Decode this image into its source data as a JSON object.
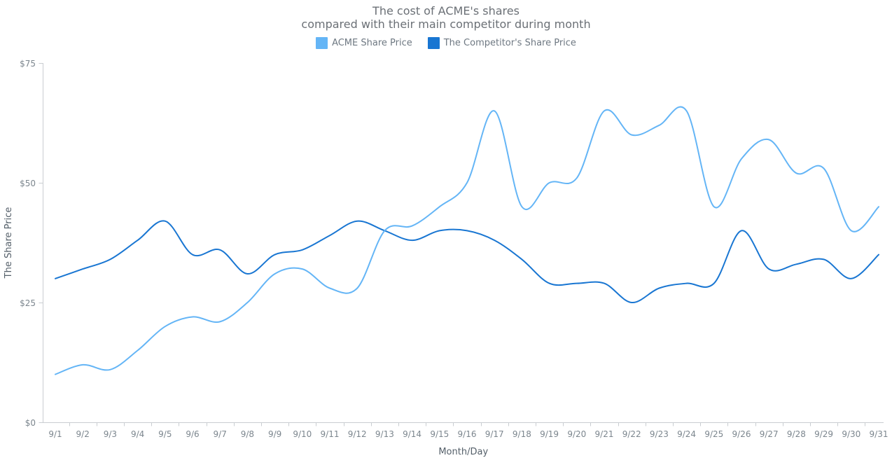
{
  "title": {
    "line1": "The cost of ACME's shares",
    "line2": "compared with their main competitor during month"
  },
  "legend": {
    "items": [
      {
        "label": "ACME Share Price",
        "color": "#64b5f6"
      },
      {
        "label": "The Competitor's Share Price",
        "color": "#1976d2"
      }
    ]
  },
  "chart_data": {
    "type": "line",
    "line_style": "spline",
    "title": "The cost of ACME's shares compared with their main competitor during month",
    "xlabel": "Month/Day",
    "ylabel": "The Share Price",
    "categories": [
      "9/1",
      "9/2",
      "9/3",
      "9/4",
      "9/5",
      "9/6",
      "9/7",
      "9/8",
      "9/9",
      "9/10",
      "9/11",
      "9/12",
      "9/13",
      "9/14",
      "9/15",
      "9/16",
      "9/17",
      "9/18",
      "9/19",
      "9/20",
      "9/21",
      "9/22",
      "9/23",
      "9/24",
      "9/25",
      "9/26",
      "9/27",
      "9/28",
      "9/29",
      "9/30",
      "9/31"
    ],
    "series": [
      {
        "name": "ACME Share Price",
        "color": "#64b5f6",
        "values": [
          10,
          12,
          11,
          15,
          20,
          22,
          21,
          25,
          31,
          32,
          28,
          28,
          40,
          41,
          45,
          50,
          65,
          45,
          50,
          51,
          65,
          60,
          62,
          65,
          45,
          55,
          59,
          52,
          53,
          40,
          45
        ]
      },
      {
        "name": "The Competitor's Share Price",
        "color": "#1976d2",
        "values": [
          30,
          32,
          34,
          38,
          42,
          35,
          36,
          31,
          35,
          36,
          39,
          42,
          40,
          38,
          40,
          40,
          38,
          34,
          29,
          29,
          29,
          25,
          28,
          29,
          29,
          40,
          32,
          33,
          34,
          30,
          35
        ]
      }
    ],
    "ylim": [
      0,
      75
    ],
    "y_ticks": [
      {
        "value": 0,
        "label": "$0"
      },
      {
        "value": 25,
        "label": "$25"
      },
      {
        "value": 50,
        "label": "$50"
      },
      {
        "value": 75,
        "label": "$75"
      }
    ],
    "grid": false,
    "legend_position": "top",
    "colors": {
      "axis_line": "#c9cdd1",
      "tick_label": "#7c868e",
      "axis_title": "#545f69",
      "title_text": "#6b7076"
    }
  }
}
